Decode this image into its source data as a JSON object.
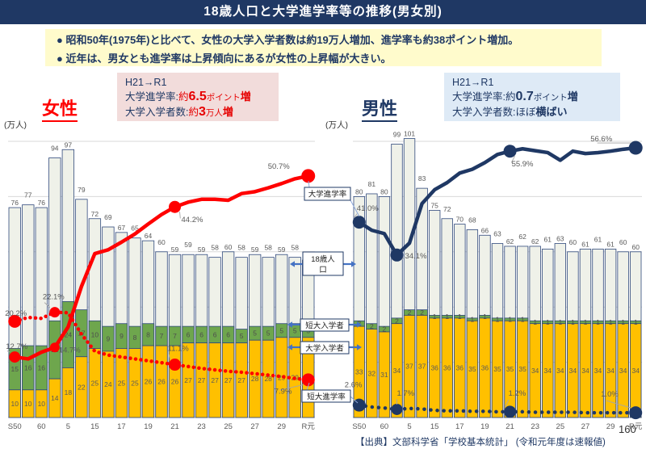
{
  "header": {
    "title": "18歳人口と大学進学率等の推移(男女別)"
  },
  "summary": {
    "bullets": [
      "● 昭和50年(1975年)と比べて、女性の大学入学者数は約19万人増加、進学率も約38ポイント増加。",
      "● 近年は、男女とも進学率は上昇傾向にあるが女性の上昇幅が大きい。"
    ]
  },
  "female_box": {
    "period": "H21→R1",
    "line1": {
      "label": "大学進学率:",
      "prefix": "約",
      "num": "6.5",
      "unit": "ポイント",
      "tail": "増"
    },
    "line2": {
      "label": "大学入学者数:",
      "prefix": "約",
      "num": "3",
      "unit": "万人",
      "tail": "増"
    }
  },
  "male_box": {
    "period": "H21→R1",
    "line1": {
      "label": "大学進学率:",
      "prefix": "約",
      "num": "0.7",
      "unit": "ポイント",
      "tail": "増"
    },
    "line2": {
      "label": "大学入学者数:",
      "prefix": "ほぼ",
      "num": "",
      "unit": "",
      "tail": "横ばい"
    }
  },
  "callouts": [
    "大学進学率",
    "18歳人口",
    "短大入学者",
    "大学入学者",
    "短大進学率"
  ],
  "footer": {
    "source": "【出典】文部科学省「学校基本統計」 (令和元年度は速報値)",
    "page": "160"
  },
  "colors": {
    "navy": "#1F3864",
    "red": "#FF0000",
    "bar_light": "#EFF1E9",
    "bar_green": "#6EA64D",
    "bar_yellow": "#FFC000",
    "accent_blue": "#4472C4"
  },
  "chart_data": [
    {
      "type": "bar+line",
      "title": "女性",
      "unit_label": "(万人)",
      "x_ticks": {
        "indices": [
          0,
          2,
          4,
          6,
          8,
          10,
          12,
          14,
          16,
          18,
          20,
          22
        ],
        "labels": [
          "S50",
          "60",
          "5",
          "15",
          "17",
          "19",
          "21",
          "23",
          "25",
          "27",
          "29",
          "R元"
        ]
      },
      "y_axis": {
        "unit": "万人",
        "grid_step": 20,
        "grid_max": 100,
        "ylim": [
          0,
          105
        ]
      },
      "series": [
        {
          "name": "18歳人口",
          "type": "bar_total",
          "color": "#EFF1E9",
          "values": [
            76,
            77,
            76,
            94,
            97,
            79,
            72,
            69,
            67,
            65,
            64,
            60,
            59,
            59,
            59,
            58,
            60,
            58,
            59,
            58,
            59,
            58,
            57
          ]
        },
        {
          "name": "短大入学者",
          "type": "bar_stack",
          "color": "#6EA64D",
          "values": [
            15,
            16,
            16,
            21,
            24,
            17,
            10,
            9,
            9,
            8,
            8,
            7,
            7,
            6,
            6,
            6,
            6,
            5,
            5,
            5,
            5,
            5,
            5
          ]
        },
        {
          "name": "大学入学者",
          "type": "bar_stack",
          "color": "#FFC000",
          "values": [
            10,
            10,
            10,
            14,
            18,
            22,
            25,
            24,
            25,
            25,
            26,
            26,
            26,
            27,
            27,
            27,
            27,
            27,
            28,
            28,
            29,
            29,
            29
          ]
        },
        {
          "name": "大学進学率",
          "type": "line",
          "dash": "solid",
          "color": "#FF0000",
          "values": [
            12.7,
            12.3,
            13.7,
            14.7,
            19.0,
            27.5,
            34.4,
            35.2,
            36.8,
            38.5,
            40.6,
            42.6,
            44.2,
            45.2,
            45.8,
            45.8,
            45.6,
            47.0,
            47.4,
            48.2,
            49.1,
            50.1,
            50.7
          ],
          "point_labels": [
            {
              "index": 0,
              "text": "12.7%",
              "dx": -11,
              "dy": -10,
              "r": 7,
              "leader": true
            },
            {
              "index": 3,
              "text": "14.7%",
              "dx": 5,
              "dy": 6,
              "r": 6
            },
            {
              "index": 12,
              "text": "44.2%",
              "dx": 8,
              "dy": 19,
              "r": 7.5,
              "leader": true
            },
            {
              "index": 22,
              "text": "50.7%",
              "dx": -50,
              "dy": -9,
              "r": 8.5
            }
          ]
        },
        {
          "name": "短大進学率",
          "type": "line",
          "dash": "dotted",
          "color": "#FF0000",
          "values": [
            20.2,
            21.0,
            20.8,
            22.1,
            22.0,
            17.5,
            13.9,
            13.1,
            12.7,
            12.3,
            11.9,
            11.5,
            11.1,
            10.7,
            10.3,
            10.0,
            9.7,
            9.5,
            9.2,
            8.9,
            8.6,
            8.2,
            7.9
          ],
          "point_labels": [
            {
              "index": 0,
              "text": "20.2%",
              "dx": -12,
              "dy": -7,
              "r": 8
            },
            {
              "index": 3,
              "text": "22.1%",
              "dx": -15,
              "dy": -16,
              "r": 6.5,
              "leader": true
            },
            {
              "index": 12,
              "text": "11.1%",
              "dx": -9,
              "dy": -17,
              "r": 7.5,
              "leader": true
            },
            {
              "index": 22,
              "text": "7.9%",
              "dx": -42,
              "dy": 17,
              "r": 8,
              "leader": true
            }
          ]
        }
      ]
    },
    {
      "type": "bar+line",
      "title": "男性",
      "unit_label": "(万人)",
      "x_ticks": {
        "indices": [
          0,
          2,
          4,
          6,
          8,
          10,
          12,
          14,
          16,
          18,
          20,
          22
        ],
        "labels": [
          "S50",
          "60",
          "5",
          "15",
          "17",
          "19",
          "21",
          "23",
          "25",
          "27",
          "29",
          "R元"
        ]
      },
      "y_axis": {
        "unit": "万人",
        "grid_step": 20,
        "grid_max": 100,
        "ylim": [
          0,
          105
        ]
      },
      "series": [
        {
          "name": "18歳人口",
          "type": "bar_total",
          "color": "#EFF1E9",
          "values": [
            80,
            81,
            80,
            99,
            101,
            83,
            75,
            72,
            70,
            68,
            66,
            63,
            62,
            62,
            62,
            61,
            63,
            60,
            61,
            61,
            61,
            60,
            60
          ]
        },
        {
          "name": "短大入学者",
          "type": "bar_stack",
          "color": "#6EA64D",
          "values": [
            2,
            2,
            2,
            2,
            2,
            2,
            1,
            1,
            1,
            1,
            1,
            1,
            1,
            1,
            1,
            1,
            1,
            1,
            1,
            1,
            1,
            1,
            1
          ]
        },
        {
          "name": "大学入学者",
          "type": "bar_stack",
          "color": "#FFC000",
          "values": [
            33,
            32,
            31,
            34,
            37,
            37,
            36,
            36,
            36,
            35,
            36,
            35,
            35,
            35,
            34,
            34,
            34,
            34,
            34,
            34,
            34,
            34,
            34
          ]
        },
        {
          "name": "大学進学率",
          "type": "line",
          "dash": "solid",
          "color": "#1F3864",
          "values": [
            41.0,
            39.3,
            38.6,
            34.1,
            36.6,
            44.9,
            47.8,
            49.3,
            51.3,
            52.1,
            53.5,
            55.2,
            55.9,
            56.4,
            56.0,
            55.6,
            54.0,
            55.9,
            55.4,
            55.6,
            55.9,
            56.3,
            56.6
          ],
          "point_labels": [
            {
              "index": 0,
              "text": "41.0%",
              "dx": -3,
              "dy": -14,
              "r": 8,
              "leader": true
            },
            {
              "index": 3,
              "text": "34.1%",
              "dx": 10,
              "dy": 4,
              "r": 8,
              "leader": true
            },
            {
              "index": 12,
              "text": "55.9%",
              "dx": 2,
              "dy": 19,
              "r": 8,
              "leader": true
            },
            {
              "index": 22,
              "text": "56.6%",
              "dx": -56,
              "dy": -8,
              "r": 8.5,
              "leader": true
            }
          ]
        },
        {
          "name": "短大進学率",
          "type": "line",
          "dash": "dotted",
          "color": "#1F3864",
          "values": [
            2.6,
            2.2,
            2.0,
            1.7,
            1.9,
            1.8,
            1.5,
            1.4,
            1.4,
            1.3,
            1.3,
            1.2,
            1.2,
            1.2,
            1.1,
            1.1,
            1.1,
            1.1,
            1.0,
            1.0,
            1.0,
            1.0,
            1.0
          ],
          "point_labels": [
            {
              "index": 0,
              "text": "2.6%",
              "dx": -18,
              "dy": -22,
              "r": 8
            },
            {
              "index": 3,
              "text": "1.7%",
              "dx": 0,
              "dy": -17,
              "r": 7,
              "leader": true
            },
            {
              "index": 12,
              "text": "1.2%",
              "dx": -2,
              "dy": -20,
              "r": 7.5,
              "leader": true
            },
            {
              "index": 22,
              "text": "1.0%",
              "dx": -43,
              "dy": -20,
              "r": 8,
              "leader": true
            }
          ]
        }
      ]
    }
  ]
}
